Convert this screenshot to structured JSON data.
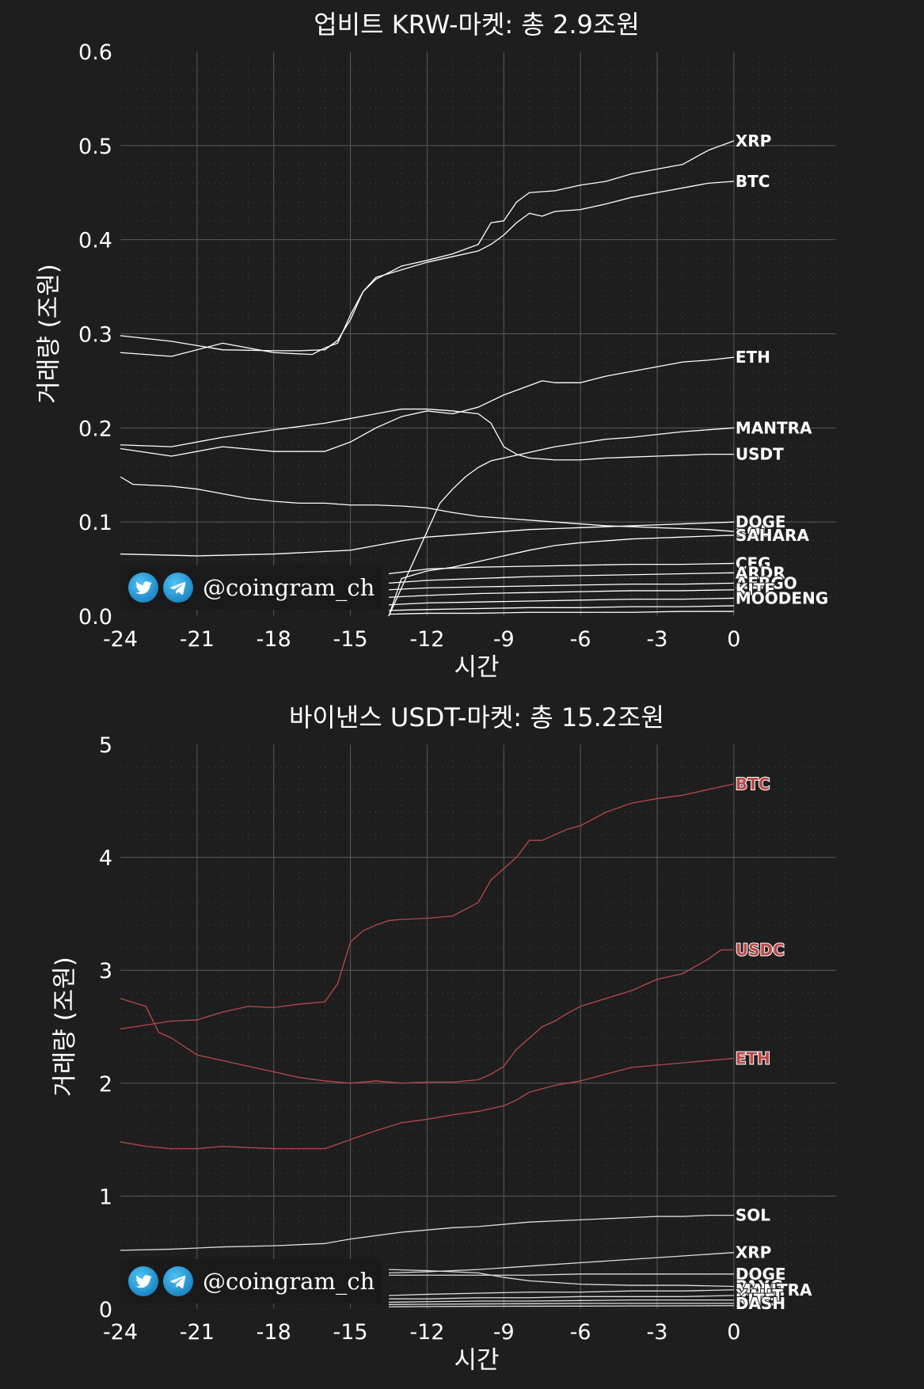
{
  "watermark": {
    "handle": "@coingram_ch",
    "icons": [
      "twitter-icon",
      "telegram-icon"
    ]
  },
  "chart_data": [
    {
      "type": "line",
      "title": "업비트 KRW-마켓: 총 2.9조원",
      "xlabel": "시간",
      "ylabel": "거래량 (조원)",
      "xlim": [
        -24,
        4
      ],
      "ylim": [
        0,
        0.6
      ],
      "xticks": [
        -24,
        -21,
        -18,
        -15,
        -12,
        -9,
        -6,
        -3,
        0
      ],
      "yticks": [
        0,
        0.1,
        0.2,
        0.3,
        0.4,
        0.5,
        0.6
      ],
      "grid": true,
      "line_color": "#ffffff",
      "series": [
        {
          "name": "XRP",
          "label_color": "#ffffff",
          "x": [
            -24,
            -22,
            -20,
            -18,
            -17,
            -16,
            -15.5,
            -15,
            -14.5,
            -14,
            -13,
            -12,
            -11,
            -10,
            -9.5,
            -9,
            -8.5,
            -8,
            -7,
            -6,
            -5,
            -4,
            -3,
            -2,
            -1,
            0
          ],
          "y": [
            0.298,
            0.292,
            0.283,
            0.282,
            0.282,
            0.283,
            0.293,
            0.315,
            0.345,
            0.358,
            0.372,
            0.378,
            0.385,
            0.395,
            0.418,
            0.42,
            0.44,
            0.45,
            0.452,
            0.458,
            0.462,
            0.47,
            0.475,
            0.48,
            0.495,
            0.505
          ]
        },
        {
          "name": "BTC",
          "label_color": "#ffffff",
          "x": [
            -24,
            -22,
            -20,
            -18,
            -16.5,
            -16,
            -15.5,
            -15,
            -14.5,
            -14,
            -13,
            -12,
            -11,
            -10,
            -9.5,
            -9,
            -8.5,
            -8,
            -7.5,
            -7,
            -6,
            -5,
            -4,
            -3,
            -2,
            -1,
            0
          ],
          "y": [
            0.28,
            0.276,
            0.29,
            0.28,
            0.278,
            0.285,
            0.29,
            0.32,
            0.345,
            0.36,
            0.368,
            0.376,
            0.382,
            0.388,
            0.395,
            0.405,
            0.418,
            0.428,
            0.425,
            0.43,
            0.432,
            0.438,
            0.445,
            0.45,
            0.455,
            0.46,
            0.462
          ]
        },
        {
          "name": "ETH",
          "label_color": "#ffffff",
          "x": [
            -24,
            -22,
            -20,
            -18,
            -16,
            -15,
            -14,
            -13,
            -12,
            -11,
            -10,
            -9,
            -8,
            -7.5,
            -7,
            -6,
            -5,
            -4,
            -3,
            -2,
            -1,
            0
          ],
          "y": [
            0.178,
            0.17,
            0.18,
            0.175,
            0.175,
            0.185,
            0.2,
            0.212,
            0.218,
            0.215,
            0.222,
            0.235,
            0.245,
            0.25,
            0.248,
            0.248,
            0.255,
            0.26,
            0.265,
            0.27,
            0.272,
            0.275
          ]
        },
        {
          "name": "MANTRA",
          "label_color": "#ffffff",
          "x": [
            -13.5,
            -13,
            -12.5,
            -12,
            -11.5,
            -11,
            -10.5,
            -10,
            -9.5,
            -9,
            -8,
            -7,
            -6,
            -5,
            -4,
            -3,
            -2,
            -1,
            0
          ],
          "y": [
            0.0,
            0.03,
            0.06,
            0.09,
            0.12,
            0.135,
            0.148,
            0.158,
            0.165,
            0.168,
            0.174,
            0.18,
            0.184,
            0.188,
            0.19,
            0.193,
            0.196,
            0.198,
            0.2
          ]
        },
        {
          "name": "USDT",
          "label_color": "#ffffff",
          "x": [
            -24,
            -22,
            -20,
            -18,
            -16,
            -15,
            -14,
            -13,
            -12,
            -11,
            -10,
            -9.5,
            -9,
            -8.5,
            -8,
            -7,
            -6,
            -5,
            -4,
            -3,
            -2,
            -1,
            0
          ],
          "y": [
            0.182,
            0.18,
            0.19,
            0.198,
            0.205,
            0.21,
            0.215,
            0.22,
            0.22,
            0.218,
            0.215,
            0.205,
            0.18,
            0.172,
            0.168,
            0.166,
            0.166,
            0.168,
            0.169,
            0.17,
            0.171,
            0.172,
            0.172
          ]
        },
        {
          "name": "SOL",
          "label_color": "#ffffff",
          "x": [
            -24,
            -23.5,
            -22,
            -21,
            -20,
            -19,
            -18,
            -17,
            -16,
            -15,
            -14,
            -13,
            -12,
            -11,
            -10,
            -9,
            -8,
            -7,
            -6,
            -5,
            -4,
            -3,
            -2,
            -1,
            0
          ],
          "y": [
            0.148,
            0.14,
            0.138,
            0.135,
            0.13,
            0.125,
            0.122,
            0.12,
            0.12,
            0.118,
            0.118,
            0.117,
            0.115,
            0.11,
            0.106,
            0.104,
            0.102,
            0.1,
            0.098,
            0.096,
            0.095,
            0.094,
            0.093,
            0.092,
            0.09
          ]
        },
        {
          "name": "DOGE",
          "label_color": "#ffffff",
          "x": [
            -24,
            -21,
            -18,
            -15,
            -14,
            -13,
            -12,
            -11,
            -10,
            -9,
            -8,
            -7,
            -6,
            -5,
            -4,
            -3,
            -2,
            -1,
            0
          ],
          "y": [
            0.066,
            0.064,
            0.066,
            0.07,
            0.075,
            0.08,
            0.084,
            0.086,
            0.088,
            0.09,
            0.092,
            0.093,
            0.094,
            0.095,
            0.096,
            0.097,
            0.098,
            0.099,
            0.1
          ]
        },
        {
          "name": "SAHARA",
          "label_color": "#ffffff",
          "x": [
            -13.5,
            -13,
            -12,
            -11,
            -10,
            -9,
            -8,
            -7,
            -6,
            -5,
            -4,
            -3,
            -2,
            -1,
            0
          ],
          "y": [
            0.0,
            0.04,
            0.048,
            0.052,
            0.058,
            0.064,
            0.07,
            0.075,
            0.078,
            0.08,
            0.082,
            0.083,
            0.084,
            0.085,
            0.086
          ]
        },
        {
          "name": "CFG",
          "label_color": "#ffffff",
          "x": [
            -13.5,
            -12,
            -10,
            -8,
            -6,
            -4,
            -2,
            0
          ],
          "y": [
            0.045,
            0.05,
            0.052,
            0.053,
            0.054,
            0.055,
            0.055,
            0.056
          ]
        },
        {
          "name": "ARDR",
          "label_color": "#ffffff",
          "x": [
            -13.5,
            -12,
            -10,
            -8,
            -6,
            -4,
            -2,
            0
          ],
          "y": [
            0.035,
            0.038,
            0.04,
            0.042,
            0.043,
            0.044,
            0.045,
            0.046
          ]
        },
        {
          "name": "AERGO",
          "label_color": "#ffffff",
          "x": [
            -13.5,
            -12,
            -10,
            -8,
            -6,
            -4,
            -2,
            0
          ],
          "y": [
            0.028,
            0.03,
            0.031,
            0.032,
            0.033,
            0.034,
            0.034,
            0.035
          ]
        },
        {
          "name": "KITE",
          "label_color": "#ffffff",
          "x": [
            -13.5,
            -12,
            -10,
            -8,
            -6,
            -4,
            -2,
            0
          ],
          "y": [
            0.02,
            0.022,
            0.024,
            0.025,
            0.026,
            0.027,
            0.027,
            0.028
          ]
        },
        {
          "name": "MOODENG",
          "label_color": "#ffffff",
          "x": [
            -13.5,
            -12,
            -10,
            -8,
            -6,
            -4,
            -2,
            0
          ],
          "y": [
            0.012,
            0.014,
            0.015,
            0.016,
            0.017,
            0.018,
            0.018,
            0.019
          ]
        },
        {
          "name": "",
          "label_color": "#ffffff",
          "x": [
            -13.5,
            -12,
            -10,
            -8,
            -6,
            -4,
            -2,
            0
          ],
          "y": [
            0.006,
            0.007,
            0.008,
            0.009,
            0.009,
            0.01,
            0.01,
            0.011
          ]
        },
        {
          "name": "",
          "label_color": "#ffffff",
          "x": [
            -13.5,
            -12,
            -10,
            -8,
            -6,
            -4,
            -2,
            0
          ],
          "y": [
            0.002,
            0.003,
            0.003,
            0.004,
            0.004,
            0.004,
            0.005,
            0.005
          ]
        }
      ]
    },
    {
      "type": "line",
      "title": "바이낸스 USDT-마켓: 총 15.2조원",
      "xlabel": "시간",
      "ylabel": "거래량 (조원)",
      "xlim": [
        -24,
        4
      ],
      "ylim": [
        0,
        5
      ],
      "xticks": [
        -24,
        -21,
        -18,
        -15,
        -12,
        -9,
        -6,
        -3,
        0
      ],
      "yticks": [
        0,
        1,
        2,
        3,
        4,
        5
      ],
      "grid": true,
      "line_color": "#b84a4a",
      "series": [
        {
          "name": "BTC",
          "label_color": "#b84a4a",
          "x": [
            -24,
            -22,
            -21,
            -20,
            -19,
            -18,
            -17,
            -16,
            -15.5,
            -15,
            -14.5,
            -14,
            -13.5,
            -13,
            -12,
            -11,
            -10,
            -9.5,
            -9,
            -8.5,
            -8,
            -7.5,
            -7,
            -6.5,
            -6,
            -5,
            -4,
            -3,
            -2,
            -1,
            0
          ],
          "y": [
            2.48,
            2.55,
            2.56,
            2.63,
            2.68,
            2.67,
            2.7,
            2.72,
            2.88,
            3.25,
            3.35,
            3.4,
            3.44,
            3.45,
            3.46,
            3.48,
            3.6,
            3.8,
            3.9,
            4.0,
            4.15,
            4.15,
            4.2,
            4.25,
            4.28,
            4.4,
            4.48,
            4.52,
            4.55,
            4.6,
            4.65
          ]
        },
        {
          "name": "USDC",
          "label_color": "#b84a4a",
          "x": [
            -24,
            -23,
            -22.5,
            -22,
            -21,
            -20,
            -19,
            -18,
            -17,
            -16,
            -15,
            -14,
            -13,
            -12,
            -11,
            -10,
            -9.5,
            -9,
            -8.5,
            -8,
            -7.5,
            -7,
            -6.5,
            -6,
            -5,
            -4,
            -3,
            -2,
            -1,
            -0.5,
            0
          ],
          "y": [
            2.75,
            2.68,
            2.45,
            2.4,
            2.25,
            2.2,
            2.15,
            2.1,
            2.05,
            2.02,
            2.0,
            2.02,
            2.0,
            2.01,
            2.01,
            2.03,
            2.08,
            2.15,
            2.3,
            2.4,
            2.5,
            2.55,
            2.62,
            2.68,
            2.75,
            2.82,
            2.92,
            2.97,
            3.1,
            3.18,
            3.18
          ]
        },
        {
          "name": "ETH",
          "label_color": "#b84a4a",
          "x": [
            -24,
            -23,
            -22,
            -21,
            -20,
            -19,
            -18,
            -17,
            -16,
            -15,
            -14,
            -13,
            -12,
            -11,
            -10,
            -9,
            -8.5,
            -8,
            -7.5,
            -7,
            -6,
            -5,
            -4,
            -3,
            -2,
            -1,
            0
          ],
          "y": [
            1.48,
            1.44,
            1.42,
            1.42,
            1.44,
            1.43,
            1.42,
            1.42,
            1.42,
            1.5,
            1.58,
            1.65,
            1.68,
            1.72,
            1.75,
            1.8,
            1.85,
            1.92,
            1.95,
            1.98,
            2.02,
            2.08,
            2.14,
            2.16,
            2.18,
            2.2,
            2.22
          ]
        },
        {
          "name": "SOL",
          "label_color": "#ffffff",
          "x": [
            -24,
            -22,
            -20,
            -18,
            -16,
            -15,
            -14,
            -13,
            -12,
            -11,
            -10,
            -9,
            -8,
            -7,
            -6,
            -5,
            -4,
            -3,
            -2,
            -1,
            0
          ],
          "y": [
            0.52,
            0.53,
            0.55,
            0.56,
            0.58,
            0.62,
            0.65,
            0.68,
            0.7,
            0.72,
            0.73,
            0.75,
            0.77,
            0.78,
            0.79,
            0.8,
            0.81,
            0.82,
            0.82,
            0.83,
            0.83
          ]
        },
        {
          "name": "XRP",
          "label_color": "#ffffff",
          "x": [
            -13.5,
            -12,
            -10,
            -8,
            -6,
            -4,
            -2,
            0
          ],
          "y": [
            0.32,
            0.33,
            0.35,
            0.38,
            0.41,
            0.44,
            0.47,
            0.5
          ]
        },
        {
          "name": "DOGE",
          "label_color": "#ffffff",
          "x": [
            -13.5,
            -12,
            -10,
            -8,
            -6,
            -4,
            -2,
            0
          ],
          "y": [
            0.3,
            0.3,
            0.3,
            0.3,
            0.31,
            0.31,
            0.31,
            0.31
          ]
        },
        {
          "name": "PAXG",
          "label_color": "#ffffff",
          "x": [
            -13.5,
            -12,
            -10,
            -9,
            -8,
            -6,
            -4,
            -2,
            0
          ],
          "y": [
            0.35,
            0.34,
            0.32,
            0.28,
            0.25,
            0.22,
            0.21,
            0.21,
            0.2
          ]
        },
        {
          "name": "MANTRA",
          "label_color": "#ffffff",
          "x": [
            -13.5,
            -12,
            -10,
            -8,
            -6,
            -4,
            -2,
            0
          ],
          "y": [
            0.12,
            0.13,
            0.14,
            0.15,
            0.15,
            0.16,
            0.16,
            0.17
          ]
        },
        {
          "name": "XAUT",
          "label_color": "#ffffff",
          "x": [
            -13.5,
            -12,
            -10,
            -8,
            -6,
            -4,
            -2,
            0
          ],
          "y": [
            0.09,
            0.09,
            0.1,
            0.1,
            0.11,
            0.11,
            0.11,
            0.12
          ]
        },
        {
          "name": "KITE",
          "label_color": "#ffffff",
          "x": [
            -13.5,
            -12,
            -10,
            -8,
            -6,
            -4,
            -2,
            0
          ],
          "y": [
            0.06,
            0.065,
            0.07,
            0.07,
            0.075,
            0.08,
            0.08,
            0.08
          ]
        },
        {
          "name": "DASH",
          "label_color": "#ffffff",
          "x": [
            -13.5,
            -12,
            -10,
            -8,
            -6,
            -4,
            -2,
            0
          ],
          "y": [
            0.04,
            0.042,
            0.045,
            0.047,
            0.05,
            0.05,
            0.05,
            0.05
          ]
        },
        {
          "name": "",
          "label_color": "#ffffff",
          "x": [
            -13.5,
            -12,
            -10,
            -8,
            -6,
            -4,
            -2,
            0
          ],
          "y": [
            0.02,
            0.022,
            0.024,
            0.025,
            0.026,
            0.027,
            0.028,
            0.03
          ]
        }
      ]
    }
  ]
}
